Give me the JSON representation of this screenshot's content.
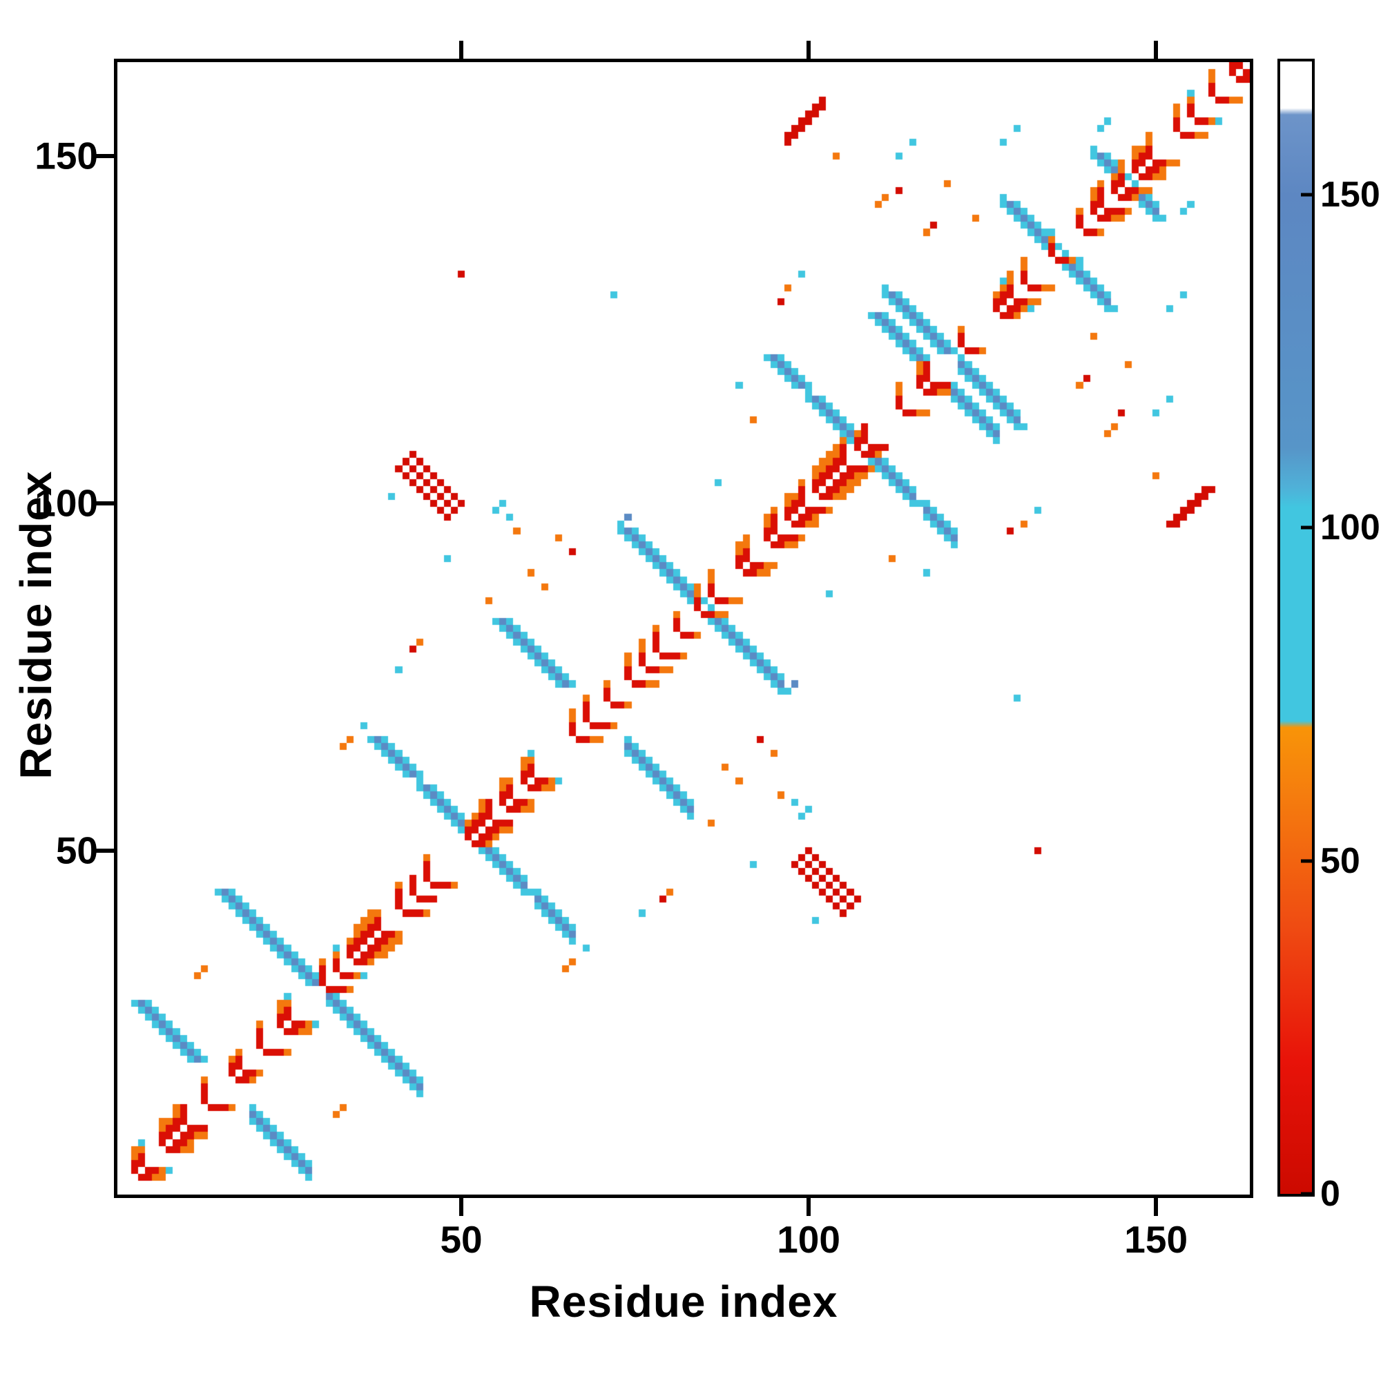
{
  "figure": {
    "xlabel": "Residue index",
    "ylabel": "Residue index",
    "x_ticks": [
      50,
      100,
      150
    ],
    "y_ticks": [
      50,
      100,
      150
    ],
    "colorbar_ticks": [
      0,
      50,
      100,
      150
    ]
  },
  "chart_data": {
    "type": "heatmap",
    "n_residues": 163,
    "x_range": [
      1,
      163
    ],
    "y_range": [
      1,
      163
    ],
    "value_range": [
      0,
      170
    ],
    "xlabel": "Residue index",
    "ylabel": "Residue index",
    "legend_position": "right-colorbar",
    "grid": false,
    "colormap_stops": [
      {
        "v": 0,
        "c": "#cc0a00"
      },
      {
        "v": 20,
        "c": "#e81309"
      },
      {
        "v": 40,
        "c": "#ef4b12"
      },
      {
        "v": 60,
        "c": "#f57d0e"
      },
      {
        "v": 70,
        "c": "#f89408"
      },
      {
        "v": 71,
        "c": "#41c6e0"
      },
      {
        "v": 103,
        "c": "#41c6e0"
      },
      {
        "v": 106,
        "c": "#4fb1d8"
      },
      {
        "v": 112,
        "c": "#5795c8"
      },
      {
        "v": 150,
        "c": "#5d87c2"
      },
      {
        "v": 162,
        "c": "#6d94c9"
      },
      {
        "v": 163,
        "c": "#ffffff"
      },
      {
        "v": 170,
        "c": "#ffffff"
      }
    ],
    "values": {
      "band_red": 10,
      "red": 5,
      "orange": 58,
      "cyan": 88,
      "blue": 140
    },
    "diagonal_band": {
      "halfwidth": 4,
      "p_gap": 0.06,
      "p_sep1_red": 0.72,
      "sep2": [
        0.5,
        0.85
      ],
      "sep3": [
        0.3,
        0.5,
        0.6
      ],
      "sep4": [
        0.12,
        0.2
      ]
    },
    "features": [
      {
        "type": "hairpin",
        "center": 30,
        "arm": 8
      },
      {
        "type": "hairpin",
        "center": 52,
        "arm": 7
      },
      {
        "type": "hairpin",
        "center": 85,
        "arm": 11
      },
      {
        "type": "hairpin",
        "center": 108,
        "arm": 7
      },
      {
        "type": "hairpin",
        "center": 121,
        "arm": 9
      },
      {
        "type": "hairpin",
        "center": 136,
        "arm": 7
      },
      {
        "type": "hairpin",
        "center": 146,
        "arm": 4
      },
      {
        "type": "segment",
        "i": 4,
        "j": 28,
        "len": 8
      },
      {
        "type": "segment",
        "i": 16,
        "j": 44,
        "len": 6
      },
      {
        "type": "segment",
        "i": 38,
        "j": 66,
        "len": 5
      },
      {
        "type": "segment",
        "i": 56,
        "j": 83,
        "len": 9
      },
      {
        "type": "segment",
        "i": 95,
        "j": 121,
        "len": 4
      },
      {
        "type": "segment",
        "i": 110,
        "j": 127,
        "len": 6
      },
      {
        "type": "fatseg",
        "i": 42,
        "j": 106,
        "len": 7,
        "thick": 3,
        "v": "red"
      },
      {
        "type": "parseg",
        "i": 97,
        "j": 153,
        "len": 5,
        "thick": 2,
        "v": "red"
      }
    ],
    "dots": [
      [
        12,
        32,
        "orange"
      ],
      [
        13,
        33,
        "orange"
      ],
      [
        33,
        65,
        "orange"
      ],
      [
        34,
        66,
        "orange"
      ],
      [
        36,
        68,
        "cyan"
      ],
      [
        41,
        76,
        "cyan"
      ],
      [
        43,
        79,
        "red"
      ],
      [
        44,
        80,
        "orange"
      ],
      [
        40,
        101,
        "cyan"
      ],
      [
        48,
        92,
        "cyan"
      ],
      [
        50,
        133,
        "red"
      ],
      [
        54,
        86,
        "orange"
      ],
      [
        55,
        99,
        "cyan"
      ],
      [
        56,
        100,
        "cyan"
      ],
      [
        57,
        98,
        "cyan"
      ],
      [
        58,
        96,
        "orange"
      ],
      [
        60,
        90,
        "orange"
      ],
      [
        62,
        88,
        "orange"
      ],
      [
        64,
        95,
        "orange"
      ],
      [
        66,
        93,
        "red"
      ],
      [
        72,
        130,
        "cyan"
      ],
      [
        74,
        98,
        "blue"
      ],
      [
        87,
        103,
        "cyan"
      ],
      [
        90,
        117,
        "cyan"
      ],
      [
        92,
        112,
        "orange"
      ],
      [
        96,
        129,
        "red"
      ],
      [
        97,
        131,
        "orange"
      ],
      [
        99,
        133,
        "cyan"
      ],
      [
        104,
        150,
        "orange"
      ],
      [
        110,
        143,
        "orange"
      ],
      [
        111,
        144,
        "orange"
      ],
      [
        113,
        145,
        "red"
      ],
      [
        113,
        150,
        "cyan"
      ],
      [
        115,
        152,
        "cyan"
      ],
      [
        117,
        139,
        "orange"
      ],
      [
        118,
        140,
        "red"
      ],
      [
        120,
        146,
        "orange"
      ],
      [
        124,
        141,
        "orange"
      ],
      [
        128,
        152,
        "cyan"
      ],
      [
        130,
        154,
        "cyan"
      ],
      [
        142,
        154,
        "cyan"
      ],
      [
        143,
        155,
        "cyan"
      ]
    ]
  }
}
